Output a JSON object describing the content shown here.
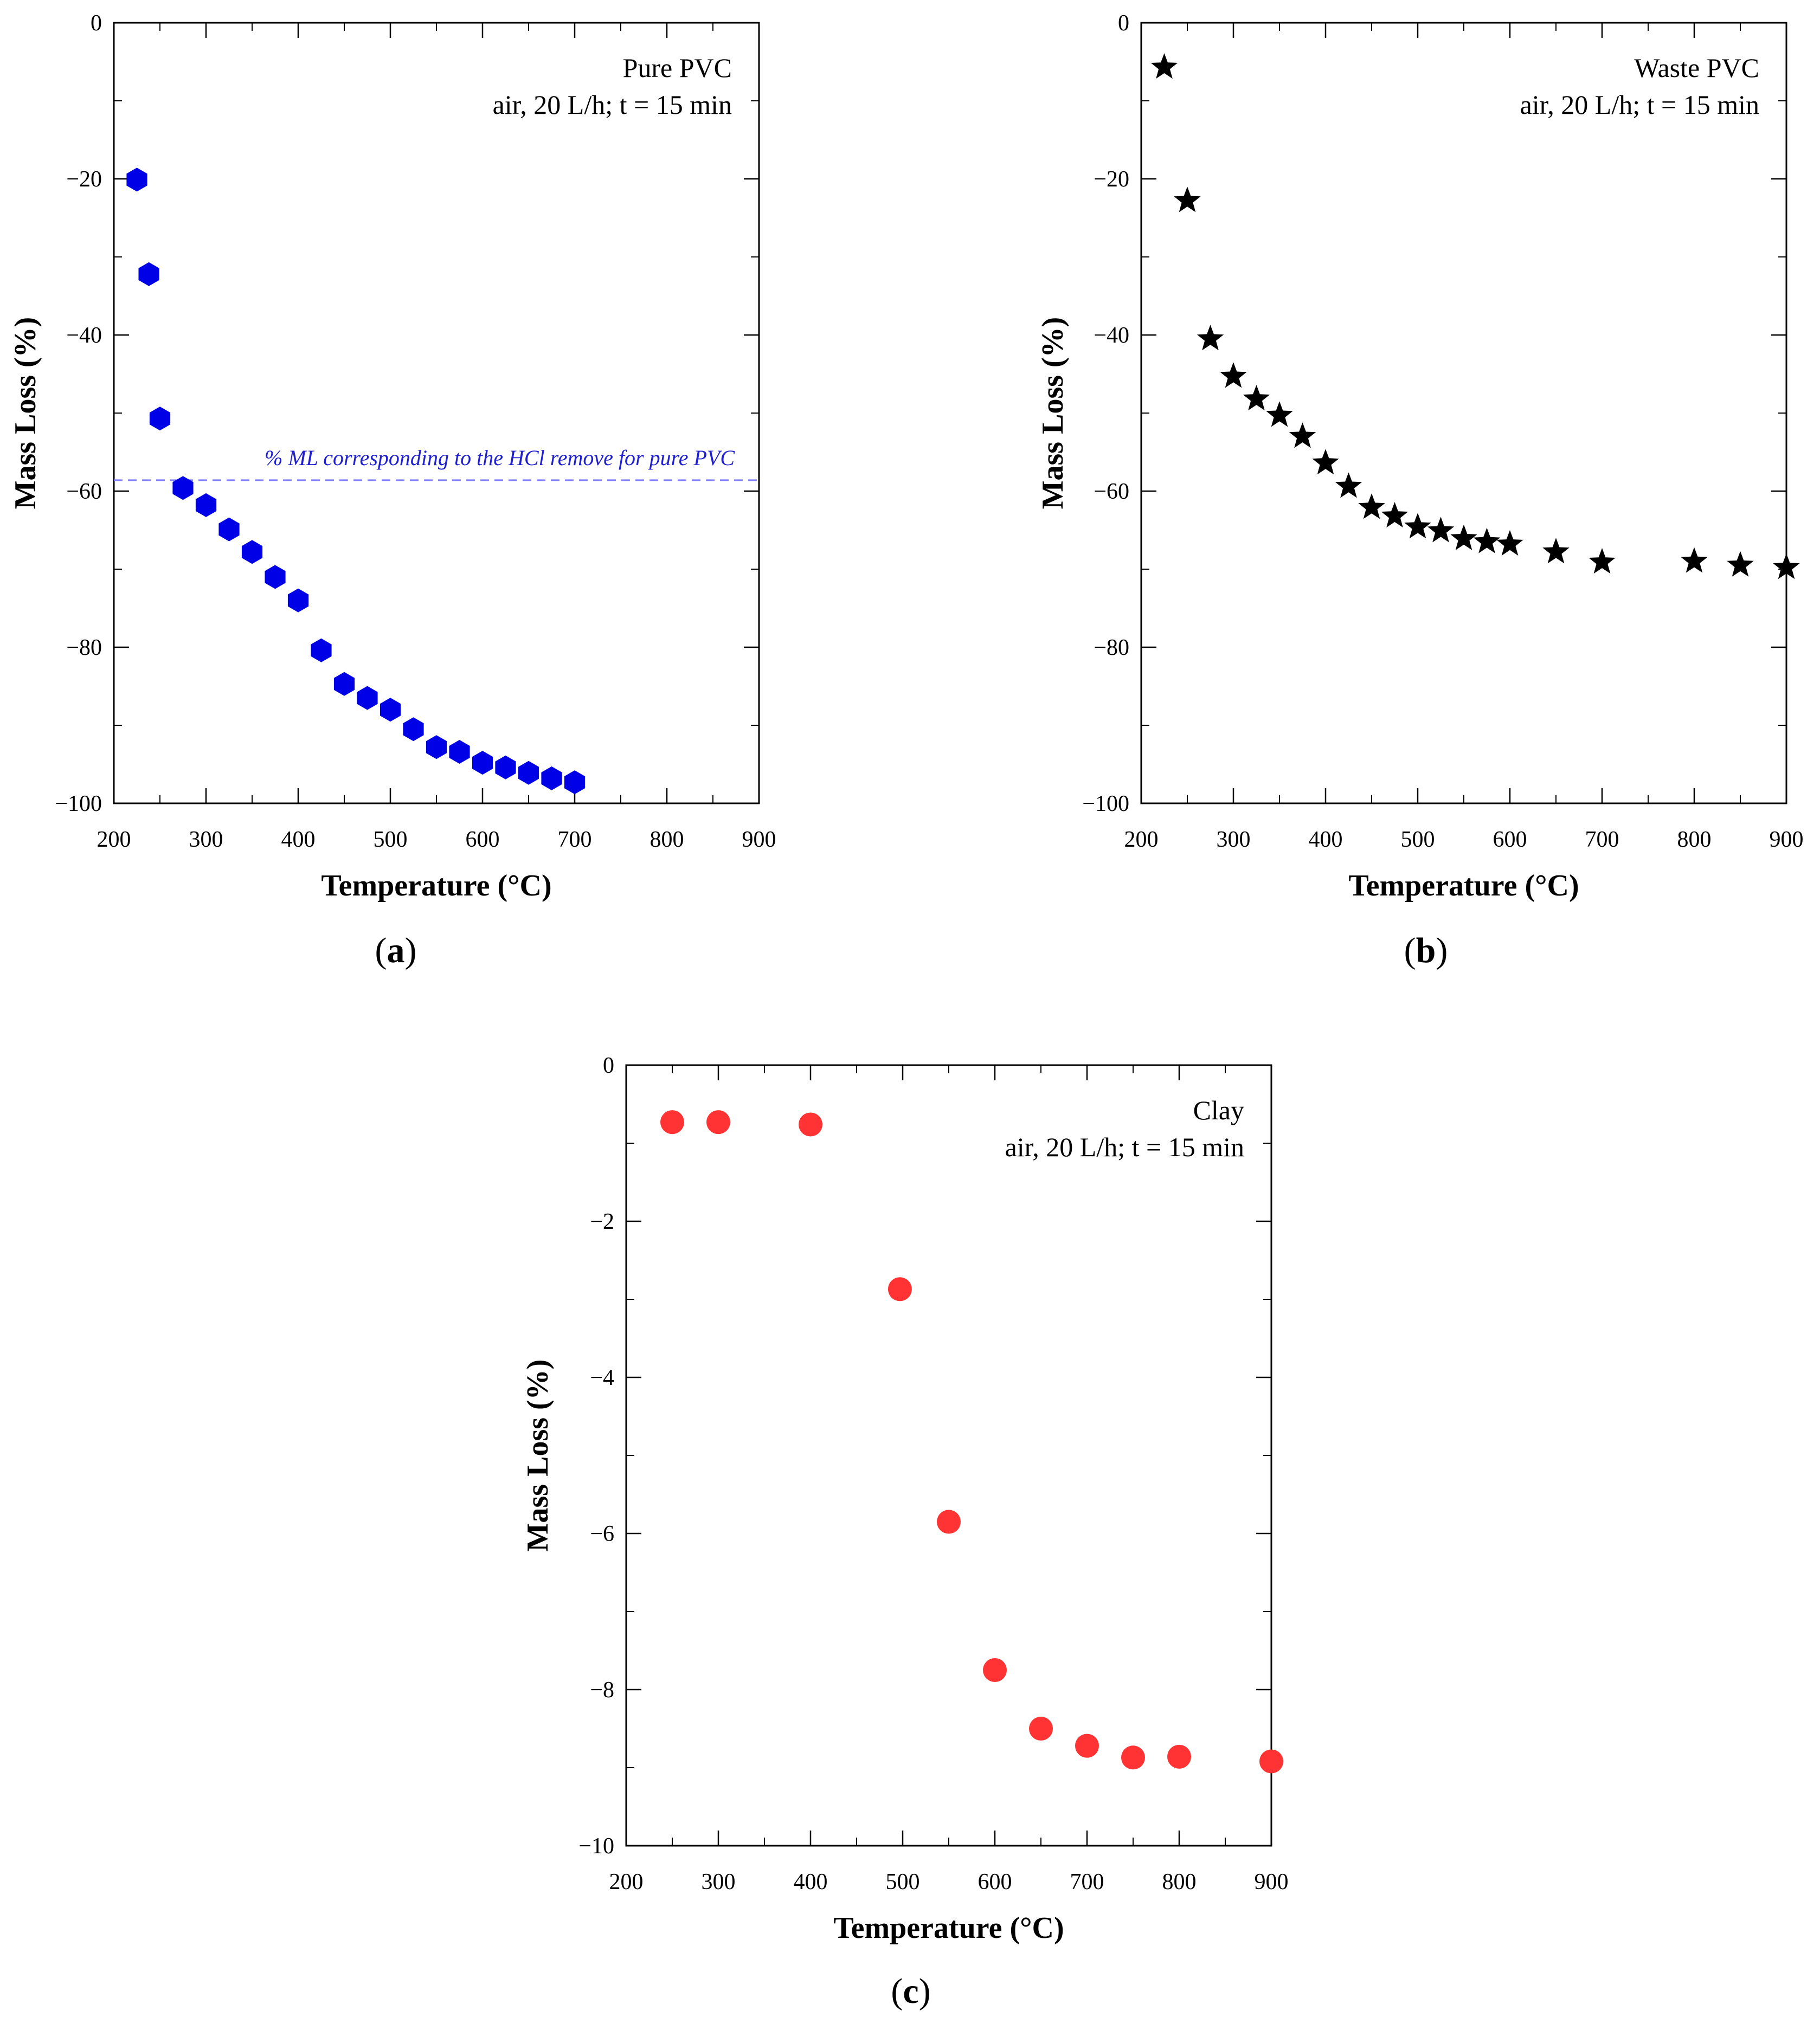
{
  "colors": {
    "pure_pvc": "#0000e6",
    "waste_pvc": "#000000",
    "clay": "#ff3333",
    "reference_line": "#8080ff"
  },
  "chart_data": [
    {
      "id": "a",
      "type": "scatter",
      "marker": "hexagon-icon",
      "caption": "(a)",
      "caption_letter": "a",
      "title": "Pure PVC",
      "subtitle": "air, 20 L/h; t = 15 min",
      "xlabel": "Temperature (°C)",
      "ylabel": "Mass Loss (%)",
      "xlim": [
        200,
        900
      ],
      "ylim": [
        -100,
        0
      ],
      "xticks": [
        200,
        300,
        400,
        500,
        600,
        700,
        800,
        900
      ],
      "yticks": [
        0,
        -20,
        -40,
        -60,
        -80,
        -100
      ],
      "ytick_labels": [
        "0",
        "−20",
        "−40",
        "−60",
        "−80",
        "−100"
      ],
      "reference_line": {
        "y": -58.6,
        "label": "% ML corresponding to the HCl remove for pure PVC"
      },
      "x": [
        225,
        238,
        250,
        275,
        300,
        325,
        350,
        375,
        400,
        425,
        450,
        475,
        500,
        525,
        550,
        575,
        600,
        625,
        650,
        675,
        700
      ],
      "y": [
        -20.1,
        -32.2,
        -50.7,
        -59.6,
        -61.8,
        -64.9,
        -67.8,
        -71.0,
        -74.0,
        -80.4,
        -84.7,
        -86.5,
        -88.0,
        -90.5,
        -92.8,
        -93.4,
        -94.8,
        -95.4,
        -96.1,
        -96.8,
        -97.3
      ]
    },
    {
      "id": "b",
      "type": "scatter",
      "marker": "star-icon",
      "caption": "(b)",
      "caption_letter": "b",
      "title": "Waste PVC",
      "subtitle": "air, 20 L/h; t = 15 min",
      "xlabel": "Temperature (°C)",
      "ylabel": "Mass Loss (%)",
      "xlim": [
        200,
        900
      ],
      "ylim": [
        -100,
        0
      ],
      "xticks": [
        200,
        300,
        400,
        500,
        600,
        700,
        800,
        900
      ],
      "yticks": [
        0,
        -20,
        -40,
        -60,
        -80,
        -100
      ],
      "ytick_labels": [
        "0",
        "−20",
        "−40",
        "−60",
        "−80",
        "−100"
      ],
      "x": [
        225,
        250,
        275,
        300,
        325,
        350,
        375,
        400,
        425,
        450,
        475,
        500,
        525,
        550,
        575,
        600,
        650,
        700,
        800,
        850,
        900
      ],
      "y": [
        -5.7,
        -22.8,
        -40.5,
        -45.3,
        -48.2,
        -50.3,
        -53.0,
        -56.4,
        -59.4,
        -62.1,
        -63.2,
        -64.6,
        -65.1,
        -66.1,
        -66.5,
        -66.8,
        -67.8,
        -69.1,
        -69.0,
        -69.5,
        -69.8
      ]
    },
    {
      "id": "c",
      "type": "scatter",
      "marker": "circle-icon",
      "caption": "(c)",
      "caption_letter": "c",
      "title": "Clay",
      "subtitle": "air, 20 L/h; t = 15 min",
      "xlabel": "Temperature (°C)",
      "ylabel": "Mass Loss (%)",
      "xlim": [
        200,
        900
      ],
      "ylim": [
        -10,
        0
      ],
      "xticks": [
        200,
        300,
        400,
        500,
        600,
        700,
        800,
        900
      ],
      "yticks": [
        0,
        -2,
        -4,
        -6,
        -8,
        -10
      ],
      "ytick_labels": [
        "0",
        "−2",
        "−4",
        "−6",
        "−8",
        "−10"
      ],
      "x": [
        250,
        300,
        400,
        497,
        550,
        600,
        650,
        700,
        750,
        800,
        900
      ],
      "y": [
        -0.73,
        -0.73,
        -0.76,
        -2.87,
        -5.85,
        -7.75,
        -8.5,
        -8.72,
        -8.87,
        -8.86,
        -8.92
      ]
    }
  ]
}
